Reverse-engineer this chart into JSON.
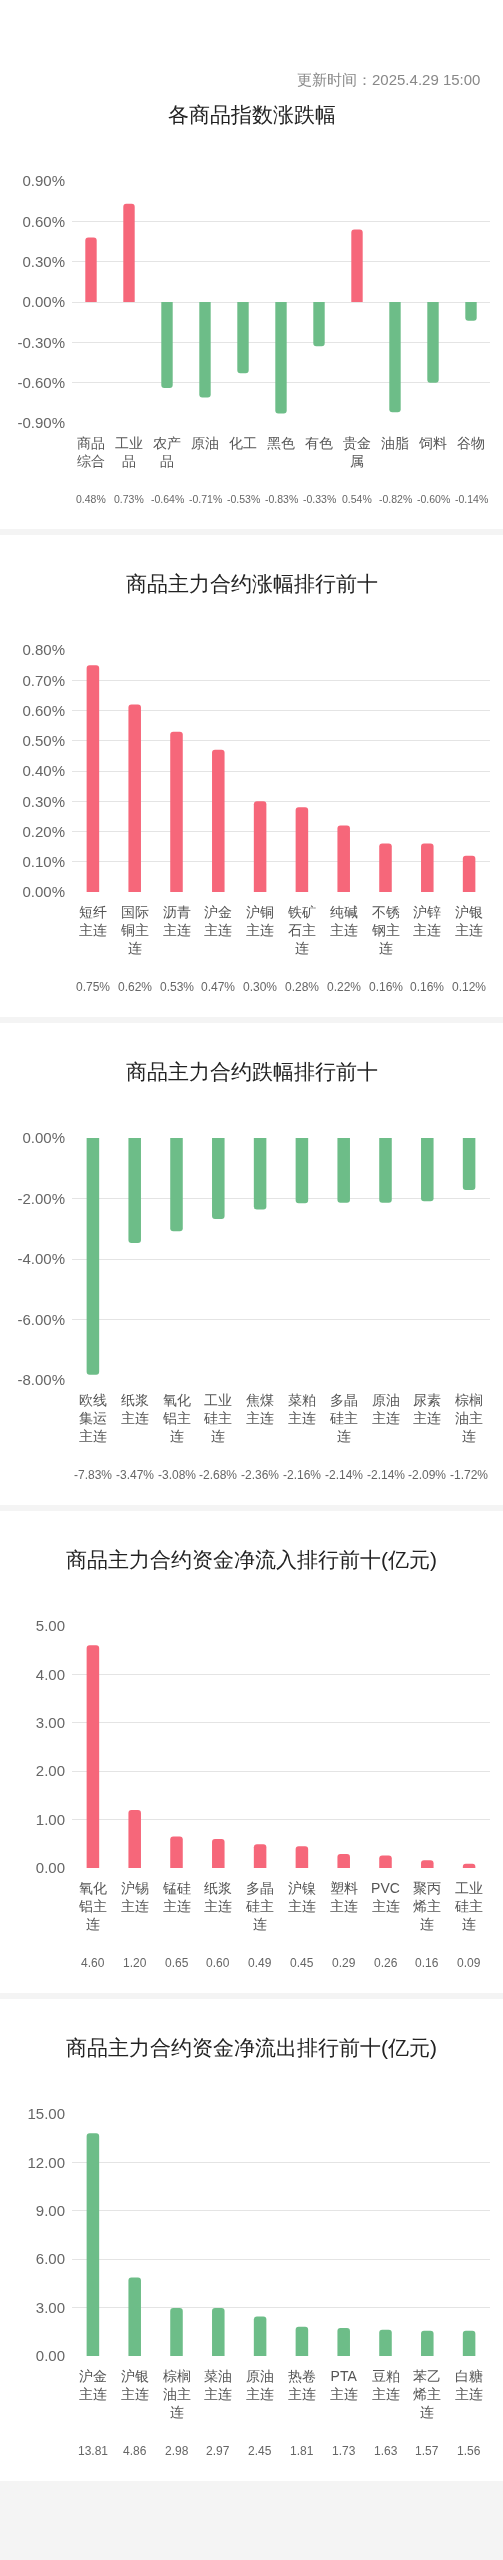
{
  "chart_data": [
    {
      "type": "bar",
      "title": "各商品指数涨跌幅",
      "annotations": [
        "更新时间：2025.4.29 15:00"
      ],
      "categories": [
        "商品综合",
        "工业品",
        "农产品",
        "原油",
        "化工",
        "黑色",
        "有色",
        "贵金属",
        "油脂",
        "饲料",
        "谷物"
      ],
      "values": [
        0.48,
        0.73,
        -0.64,
        -0.71,
        -0.53,
        -0.83,
        -0.33,
        0.54,
        -0.82,
        -0.6,
        -0.14
      ],
      "colors": [
        "#f6677a",
        "#f6677a",
        "#6dbd88",
        "#6dbd88",
        "#6dbd88",
        "#6dbd88",
        "#6dbd88",
        "#f6677a",
        "#6dbd88",
        "#6dbd88",
        "#6dbd88"
      ],
      "value_labels": [
        "0.48%",
        "0.73%",
        "-0.64%",
        "-0.71%",
        "-0.53%",
        "-0.83%",
        "-0.33%",
        "0.54%",
        "-0.82%",
        "-0.60%",
        "-0.14%"
      ],
      "ylim": [
        -0.9,
        0.9
      ],
      "yticks": [
        {
          "value": -0.9,
          "label": "-0.90%"
        },
        {
          "value": -0.6,
          "label": "-0.60%"
        },
        {
          "value": -0.3,
          "label": "-0.30%"
        },
        {
          "value": 0,
          "label": "0.00%"
        },
        {
          "value": 0.3,
          "label": "0.30%"
        },
        {
          "value": 0.6,
          "label": "0.60%"
        },
        {
          "value": 0.9,
          "label": "0.90%"
        }
      ],
      "grid": "y"
    },
    {
      "type": "bar",
      "title": "商品主力合约涨幅排行前十",
      "categories": [
        "短纤主连",
        "国际铜主连",
        "沥青主连",
        "沪金主连",
        "沪铜主连",
        "铁矿石主连",
        "纯碱主连",
        "不锈钢主连",
        "沪锌主连",
        "沪银主连"
      ],
      "values": [
        0.75,
        0.62,
        0.53,
        0.47,
        0.3,
        0.28,
        0.22,
        0.16,
        0.16,
        0.12
      ],
      "color": "#f6677a",
      "value_labels": [
        "0.75%",
        "0.62%",
        "0.53%",
        "0.47%",
        "0.30%",
        "0.28%",
        "0.22%",
        "0.16%",
        "0.16%",
        "0.12%"
      ],
      "ylim": [
        0,
        0.8
      ],
      "yticks": [
        {
          "value": 0,
          "label": "0.00%"
        },
        {
          "value": 0.1,
          "label": "0.10%"
        },
        {
          "value": 0.2,
          "label": "0.20%"
        },
        {
          "value": 0.3,
          "label": "0.30%"
        },
        {
          "value": 0.4,
          "label": "0.40%"
        },
        {
          "value": 0.5,
          "label": "0.50%"
        },
        {
          "value": 0.6,
          "label": "0.60%"
        },
        {
          "value": 0.7,
          "label": "0.70%"
        },
        {
          "value": 0.8,
          "label": "0.80%"
        }
      ],
      "grid": "y"
    },
    {
      "type": "bar",
      "title": "商品主力合约跌幅排行前十",
      "categories": [
        "欧线集运主连",
        "纸浆主连",
        "氧化铝主连",
        "工业硅主连",
        "焦煤主连",
        "菜粕主连",
        "多晶硅主连",
        "原油主连",
        "尿素主连",
        "棕榈油主连"
      ],
      "values": [
        -7.83,
        -3.47,
        -3.08,
        -2.68,
        -2.36,
        -2.16,
        -2.14,
        -2.14,
        -2.09,
        -1.72
      ],
      "color": "#6dbd88",
      "value_labels": [
        "-7.83%",
        "-3.47%",
        "-3.08%",
        "-2.68%",
        "-2.36%",
        "-2.16%",
        "-2.14%",
        "-2.14%",
        "-2.09%",
        "-1.72%"
      ],
      "ylim": [
        -8,
        0
      ],
      "yticks": [
        {
          "value": -8,
          "label": "-8.00%"
        },
        {
          "value": -6,
          "label": "-6.00%"
        },
        {
          "value": -4,
          "label": "-4.00%"
        },
        {
          "value": -2,
          "label": "-2.00%"
        },
        {
          "value": 0,
          "label": "0.00%"
        }
      ],
      "grid": "y"
    },
    {
      "type": "bar",
      "title": "商品主力合约资金净流入排行前十(亿元)",
      "categories": [
        "氧化铝主连",
        "沪锡主连",
        "锰硅主连",
        "纸浆主连",
        "多晶硅主连",
        "沪镍主连",
        "塑料主连",
        "PVC主连",
        "聚丙烯主连",
        "工业硅主连"
      ],
      "values": [
        4.6,
        1.2,
        0.65,
        0.6,
        0.49,
        0.45,
        0.29,
        0.26,
        0.16,
        0.09
      ],
      "color": "#f6677a",
      "value_labels": [
        "4.60",
        "1.20",
        "0.65",
        "0.60",
        "0.49",
        "0.45",
        "0.29",
        "0.26",
        "0.16",
        "0.09"
      ],
      "ylim": [
        0,
        5
      ],
      "yticks": [
        {
          "value": 0,
          "label": "0.00"
        },
        {
          "value": 1,
          "label": "1.00"
        },
        {
          "value": 2,
          "label": "2.00"
        },
        {
          "value": 3,
          "label": "3.00"
        },
        {
          "value": 4,
          "label": "4.00"
        },
        {
          "value": 5,
          "label": "5.00"
        }
      ],
      "grid": "y"
    },
    {
      "type": "bar",
      "title": "商品主力合约资金净流出排行前十(亿元)",
      "categories": [
        "沪金主连",
        "沪银主连",
        "棕榈油主连",
        "菜油主连",
        "原油主连",
        "热卷主连",
        "PTA主连",
        "豆粕主连",
        "苯乙烯主连",
        "白糖主连"
      ],
      "values": [
        13.81,
        4.86,
        2.98,
        2.97,
        2.45,
        1.81,
        1.73,
        1.63,
        1.57,
        1.56
      ],
      "color": "#6dbd88",
      "value_labels": [
        "13.81",
        "4.86",
        "2.98",
        "2.97",
        "2.45",
        "1.81",
        "1.73",
        "1.63",
        "1.57",
        "1.56"
      ],
      "ylim": [
        0,
        15
      ],
      "yticks": [
        {
          "value": 0,
          "label": "0.00"
        },
        {
          "value": 3,
          "label": "3.00"
        },
        {
          "value": 6,
          "label": "6.00"
        },
        {
          "value": 9,
          "label": "9.00"
        },
        {
          "value": 12,
          "label": "12.00"
        },
        {
          "value": 15,
          "label": "15.00"
        }
      ],
      "grid": "y"
    }
  ]
}
